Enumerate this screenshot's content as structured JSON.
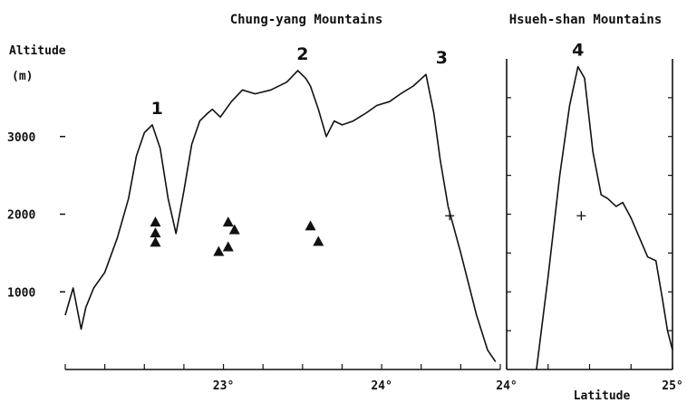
{
  "chart_data": [
    {
      "type": "line",
      "title": "Chung-yang Mountains",
      "ylabel_lines": [
        "Altitude",
        "(m)"
      ],
      "xlim": [
        22.0,
        24.75
      ],
      "ylim": [
        0,
        4000
      ],
      "yticks": [
        1000,
        2000,
        3000
      ],
      "ytick_labels": [
        "1000",
        "2000",
        "3000"
      ],
      "xticks": [
        23,
        24
      ],
      "xtick_labels": [
        "23°",
        "24°"
      ],
      "series": [
        {
          "x": [
            22.0,
            22.05,
            22.1,
            22.13,
            22.18,
            22.25,
            22.33,
            22.4,
            22.45,
            22.5,
            22.55,
            22.6,
            22.65,
            22.7,
            22.75,
            22.8,
            22.85,
            22.9,
            22.93,
            22.98,
            23.05,
            23.12,
            23.2,
            23.3,
            23.4,
            23.47,
            23.52,
            23.55,
            23.6,
            23.65,
            23.7,
            23.75,
            23.82,
            23.9,
            23.97,
            24.05,
            24.12,
            24.2,
            24.28,
            24.33,
            24.37,
            24.42,
            24.5,
            24.6,
            24.67,
            24.72
          ],
          "y": [
            700,
            1050,
            520,
            800,
            1050,
            1250,
            1700,
            2200,
            2750,
            3050,
            3150,
            2850,
            2200,
            1750,
            2300,
            2900,
            3200,
            3300,
            3350,
            3250,
            3450,
            3600,
            3550,
            3600,
            3700,
            3850,
            3750,
            3650,
            3350,
            3000,
            3200,
            3150,
            3200,
            3300,
            3400,
            3450,
            3550,
            3650,
            3800,
            3300,
            2700,
            2100,
            1500,
            700,
            250,
            100
          ]
        }
      ],
      "markers": [
        {
          "shape": "triangle",
          "x": 22.57,
          "y": 1900
        },
        {
          "shape": "triangle",
          "x": 22.57,
          "y": 1760
        },
        {
          "shape": "triangle",
          "x": 22.57,
          "y": 1640
        },
        {
          "shape": "triangle",
          "x": 23.03,
          "y": 1900
        },
        {
          "shape": "triangle",
          "x": 23.07,
          "y": 1800
        },
        {
          "shape": "triangle",
          "x": 22.97,
          "y": 1520
        },
        {
          "shape": "triangle",
          "x": 23.03,
          "y": 1580
        },
        {
          "shape": "triangle",
          "x": 23.55,
          "y": 1850
        },
        {
          "shape": "triangle",
          "x": 23.6,
          "y": 1650
        },
        {
          "shape": "plus",
          "x": 24.43,
          "y": 1980
        }
      ],
      "peaks": [
        {
          "label": "1",
          "x": 22.58,
          "y": 3150
        },
        {
          "label": "2",
          "x": 23.5,
          "y": 3850
        },
        {
          "label": "3",
          "x": 24.38,
          "y": 3800
        }
      ]
    },
    {
      "type": "line",
      "title": "Hsueh-shan Mountains",
      "xlabel": "Latitude",
      "xlim": [
        24.0,
        25.0
      ],
      "ylim": [
        0,
        4000
      ],
      "xticks": [
        24,
        25
      ],
      "xtick_labels": [
        "24°",
        "25°"
      ],
      "series": [
        {
          "x": [
            24.18,
            24.25,
            24.32,
            24.38,
            24.43,
            24.47,
            24.52,
            24.57,
            24.61,
            24.66,
            24.7,
            24.75,
            24.8,
            24.85,
            24.9,
            24.94,
            24.97,
            25.0
          ],
          "y": [
            0,
            1200,
            2500,
            3400,
            3900,
            3750,
            2800,
            2250,
            2200,
            2100,
            2150,
            1950,
            1700,
            1450,
            1400,
            900,
            500,
            250
          ]
        }
      ],
      "markers": [
        {
          "shape": "plus",
          "x": 24.45,
          "y": 1980
        }
      ],
      "peaks": [
        {
          "label": "4",
          "x": 24.43,
          "y": 3900
        }
      ]
    }
  ]
}
